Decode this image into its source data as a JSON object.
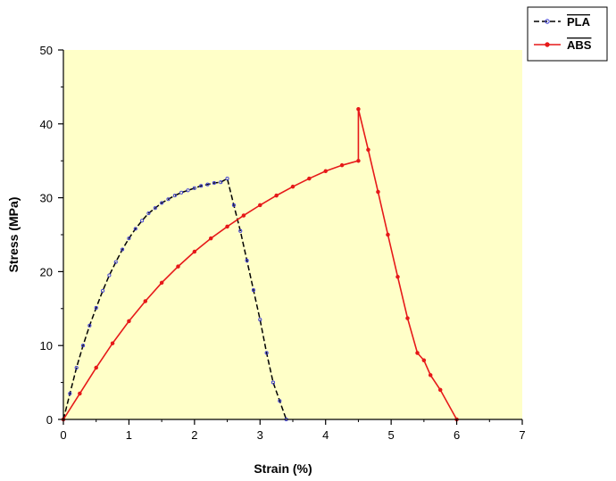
{
  "chart_data": {
    "type": "line",
    "title": "",
    "xlabel": "Strain (%)",
    "ylabel": "Stress (MPa)",
    "xlim": [
      0,
      7
    ],
    "ylim": [
      0,
      50
    ],
    "xticks": [
      "0",
      "1",
      "2",
      "3",
      "4",
      "5",
      "6",
      "7"
    ],
    "yticks": [
      "0",
      "10",
      "20",
      "30",
      "40",
      "50"
    ],
    "plot_background": "#ffffc8",
    "grid": false,
    "legend_position": "top-right",
    "series": [
      {
        "name": "PLA",
        "color": "#000000",
        "marker_color": "#3a3ad6",
        "style": "dashed",
        "x": [
          0,
          0.1,
          0.2,
          0.3,
          0.4,
          0.5,
          0.6,
          0.7,
          0.8,
          0.9,
          1.0,
          1.1,
          1.2,
          1.3,
          1.4,
          1.5,
          1.6,
          1.7,
          1.8,
          1.9,
          2.0,
          2.1,
          2.2,
          2.3,
          2.4,
          2.5,
          2.6,
          2.7,
          2.8,
          2.9,
          3.0,
          3.1,
          3.2,
          3.3,
          3.4
        ],
        "y": [
          0,
          3.5,
          7.0,
          10.0,
          12.7,
          15.1,
          17.4,
          19.5,
          21.3,
          23.0,
          24.5,
          25.8,
          26.9,
          27.9,
          28.6,
          29.3,
          29.8,
          30.3,
          30.7,
          31.0,
          31.3,
          31.6,
          31.8,
          32.0,
          32.1,
          32.6,
          29.0,
          25.5,
          21.5,
          17.5,
          13.5,
          9.0,
          5.0,
          2.5,
          0
        ]
      },
      {
        "name": "ABS",
        "color": "#e61919",
        "marker_color": "#e61919",
        "style": "solid",
        "x": [
          0,
          0.25,
          0.5,
          0.75,
          1.0,
          1.25,
          1.5,
          1.75,
          2.0,
          2.25,
          2.5,
          2.75,
          3.0,
          3.25,
          3.5,
          3.75,
          4.0,
          4.25,
          4.5,
          4.5,
          4.65,
          4.8,
          4.95,
          5.1,
          5.25,
          5.4,
          5.5,
          5.6,
          5.75,
          6.0
        ],
        "y": [
          0,
          3.5,
          7.0,
          10.3,
          13.3,
          16.0,
          18.5,
          20.7,
          22.7,
          24.5,
          26.1,
          27.6,
          29.0,
          30.3,
          31.5,
          32.6,
          33.6,
          34.4,
          35.0,
          42.0,
          36.5,
          30.8,
          25.0,
          19.3,
          13.7,
          9.0,
          8.0,
          6.0,
          4.0,
          0
        ]
      }
    ]
  }
}
